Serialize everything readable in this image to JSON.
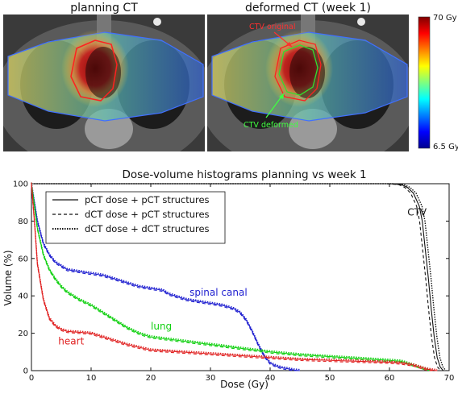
{
  "panels": {
    "left_title": "planning CT",
    "right_title": "deformed CT (week 1)",
    "ctv_original_label": "CTV original",
    "ctv_deformed_label": "CTV deformed"
  },
  "colorbar": {
    "max_label": "70 Gy",
    "min_label": "6.5 Gy",
    "max": 70,
    "min": 6.5
  },
  "colors": {
    "heart": "#e02020",
    "lung": "#10d010",
    "spinal_canal": "#2020d0",
    "ctv": "#111111"
  },
  "chart_data": {
    "type": "line",
    "title": "Dose-volume histograms planning vs week 1",
    "xlabel": "Dose (Gy)",
    "ylabel": "Volume (%)",
    "xlim": [
      0,
      70
    ],
    "ylim": [
      0,
      100
    ],
    "xticks": [
      0,
      10,
      20,
      30,
      40,
      50,
      60,
      70
    ],
    "yticks": [
      0,
      20,
      40,
      60,
      80,
      100
    ],
    "grid": false,
    "legend_position": "top-left",
    "legend": [
      {
        "label": "pCT dose + pCT structures",
        "style": "solid"
      },
      {
        "label": "dCT dose + pCT structures",
        "style": "dashed"
      },
      {
        "label": "dCT dose + dCT structures",
        "style": "dotted"
      }
    ],
    "series": [
      {
        "name": "CTV",
        "color_key": "ctv",
        "x": [
          0,
          60,
          62,
          63,
          64,
          65,
          65.5,
          66,
          66.5,
          67,
          67.5,
          68,
          68.5,
          69
        ],
        "y": [
          100,
          100,
          99.5,
          98,
          95,
          88,
          80,
          65,
          50,
          33,
          18,
          7,
          2,
          0
        ]
      },
      {
        "name": "spinal canal",
        "color_key": "spinal_canal",
        "x": [
          0,
          0.5,
          1,
          2,
          3,
          4,
          5,
          6,
          8,
          10,
          12,
          14,
          16,
          18,
          20,
          22,
          23,
          24,
          26,
          28,
          30,
          32,
          34,
          35,
          36,
          37,
          38,
          39,
          40,
          41,
          42,
          43,
          44,
          45
        ],
        "y": [
          100,
          90,
          80,
          68,
          62,
          58,
          56,
          54,
          53,
          52,
          51,
          49,
          47,
          45,
          44,
          43,
          41,
          40,
          38,
          37,
          36,
          35,
          33,
          31,
          27,
          21,
          14,
          8,
          4,
          2.5,
          1.5,
          1,
          0.3,
          0
        ]
      },
      {
        "name": "lung",
        "color_key": "lung",
        "x": [
          0,
          0.5,
          1,
          2,
          3,
          4,
          5,
          6,
          8,
          10,
          12,
          14,
          16,
          18,
          20,
          25,
          30,
          35,
          40,
          45,
          50,
          55,
          60,
          62,
          63,
          64,
          65,
          66,
          67
        ],
        "y": [
          100,
          88,
          76,
          62,
          54,
          49,
          45,
          42,
          38,
          35,
          31,
          27,
          23,
          20,
          18,
          16,
          14,
          12,
          10,
          8.5,
          7.5,
          6.5,
          5.5,
          5,
          4,
          3,
          2,
          1,
          0
        ]
      },
      {
        "name": "heart",
        "color_key": "heart",
        "x": [
          0,
          0.5,
          1,
          2,
          3,
          4,
          5,
          6,
          8,
          10,
          12,
          14,
          16,
          18,
          20,
          25,
          30,
          35,
          40,
          45,
          50,
          55,
          60,
          62,
          64,
          65,
          66,
          67,
          68
        ],
        "y": [
          100,
          80,
          57,
          38,
          28,
          24,
          22,
          21,
          20.5,
          20,
          18,
          16,
          14,
          12.5,
          11,
          10,
          9,
          8,
          7,
          6,
          5.5,
          5,
          4.5,
          4,
          3,
          2,
          1,
          0.4,
          0
        ]
      }
    ],
    "annotations": [
      {
        "text": "CTV",
        "x": 63,
        "y": 83
      },
      {
        "text": "spinal canal",
        "x": 26.5,
        "y": 40
      },
      {
        "text": "lung",
        "x": 20,
        "y": 22
      },
      {
        "text": "heart",
        "x": 4.5,
        "y": 14
      }
    ]
  }
}
